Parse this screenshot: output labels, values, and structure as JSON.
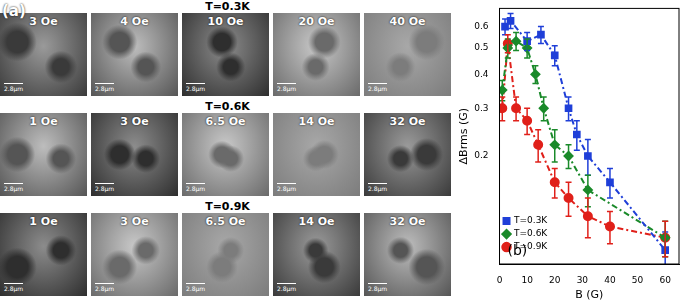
{
  "panel_a": {
    "label": "(a)",
    "rows": [
      {
        "title": "T=0.3K",
        "images": [
          {
            "label": "3 Oe",
            "scale_bar": "2.8μm"
          },
          {
            "label": "4 Oe",
            "scale_bar": "2.8μm"
          },
          {
            "label": "10 Oe",
            "scale_bar": "2.8μm"
          },
          {
            "label": "20 Oe",
            "scale_bar": "2.8μm"
          },
          {
            "label": "40 Oe",
            "scale_bar": "2.8μm"
          }
        ]
      },
      {
        "title": "T=0.6K",
        "images": [
          {
            "label": "1 Oe",
            "scale_bar": "2.8μm"
          },
          {
            "label": "3 Oe",
            "scale_bar": "2.8μm"
          },
          {
            "label": "6.5 Oe",
            "scale_bar": "2.8μm"
          },
          {
            "label": "14 Oe",
            "scale_bar": "2.8μm"
          },
          {
            "label": "32 Oe",
            "scale_bar": "2.8μm"
          }
        ]
      },
      {
        "title": "T=0.9K",
        "images": [
          {
            "label": "1 Oe",
            "scale_bar": "2.8μm"
          },
          {
            "label": "3 Oe",
            "scale_bar": "2.8μm"
          },
          {
            "label": "6.5 Oe",
            "scale_bar": "2.8μm"
          },
          {
            "label": "14 Oe",
            "scale_bar": "2.8μm"
          },
          {
            "label": "32 Oe",
            "scale_bar": "2.8μm"
          }
        ]
      }
    ]
  },
  "chart_data": {
    "type": "line",
    "annotation": "(b)",
    "x_label": "B (G)",
    "y_label": "ΔBrms (G)",
    "log": "y",
    "grid": false,
    "legend": "top right",
    "xlim": [
      0,
      65
    ],
    "xticks": [
      0,
      10,
      20,
      30,
      40,
      50,
      60
    ],
    "ylim": [
      0.08,
      0.7
    ],
    "yticks": [
      0.2,
      0.3,
      0.4,
      0.5,
      0.6
    ],
    "series": [
      {
        "name": "T=0.3K",
        "color": "#1f3fd8",
        "marker": "square",
        "line_style": "dashdot",
        "x": [
          2,
          4,
          10,
          15,
          20,
          25,
          28,
          32,
          40,
          60
        ],
        "values": [
          0.6,
          0.63,
          0.53,
          0.56,
          0.47,
          0.3,
          0.24,
          0.2,
          0.16,
          0.09
        ],
        "errors": [
          0.04,
          0.04,
          0.04,
          0.04,
          0.04,
          0.03,
          0.03,
          0.03,
          0.02,
          0.015
        ]
      },
      {
        "name": "T=0.6K",
        "color": "#1a8a2a",
        "marker": "diamond",
        "line_style": "dashdot",
        "x": [
          1,
          3,
          6,
          10,
          13,
          16,
          20,
          25,
          32,
          60
        ],
        "values": [
          0.35,
          0.5,
          0.53,
          0.5,
          0.4,
          0.3,
          0.22,
          0.2,
          0.15,
          0.1
        ],
        "errors": [
          0.03,
          0.04,
          0.04,
          0.04,
          0.03,
          0.03,
          0.03,
          0.02,
          0.02,
          0.015
        ]
      },
      {
        "name": "T=0.9K",
        "color": "#e0201a",
        "marker": "circle",
        "line_style": "dashdot",
        "x": [
          1,
          3,
          6,
          10,
          14,
          20,
          25,
          32,
          40,
          60
        ],
        "values": [
          0.3,
          0.52,
          0.3,
          0.27,
          0.22,
          0.16,
          0.14,
          0.12,
          0.11,
          0.1
        ],
        "errors": [
          0.03,
          0.04,
          0.03,
          0.03,
          0.03,
          0.02,
          0.02,
          0.02,
          0.015,
          0.015
        ]
      }
    ]
  }
}
